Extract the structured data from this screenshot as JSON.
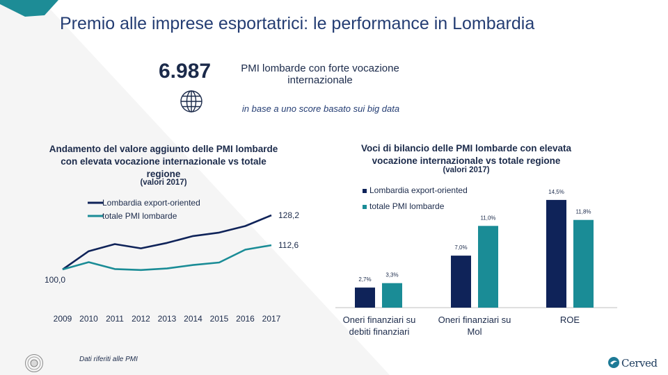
{
  "title": "Premio alle imprese esportatrici: le performance in Lombardia",
  "kpi": {
    "value": "6.987",
    "description": "PMI lombarde con forte vocazione internazionale",
    "note": "in base a uno score basato sui big data"
  },
  "colors": {
    "navy": "#0f2359",
    "teal": "#1a8c96",
    "title_blue": "#243d73",
    "axis": "#bfbfbf"
  },
  "chart_data": [
    {
      "type": "line",
      "title": "Andamento del valore aggiunto delle PMI lombarde con elevata vocazione internazionale vs totale regione",
      "subtitle": "(valori 2017)",
      "x": [
        "2009",
        "2010",
        "2011",
        "2012",
        "2013",
        "2014",
        "2015",
        "2016",
        "2017"
      ],
      "series": [
        {
          "name": "Lombardia export-oriented",
          "color": "#0f2359",
          "values": [
            100.0,
            109.5,
            113.2,
            111.0,
            113.8,
            117.4,
            119.2,
            122.6,
            128.2
          ],
          "end_label": "128,2"
        },
        {
          "name": "totale PMI lombarde",
          "color": "#1a8c96",
          "values": [
            100.0,
            103.8,
            100.2,
            99.7,
            100.5,
            102.3,
            103.6,
            110.3,
            112.6
          ],
          "end_label": "112,6"
        }
      ],
      "start_label": "100,0",
      "ylim": [
        97,
        131
      ],
      "legend": "top-left"
    },
    {
      "type": "bar",
      "title": "Voci di bilancio delle PMI lombarde con elevata vocazione internazionale vs totale regione",
      "subtitle": "(valori 2017)",
      "categories": [
        "Oneri finanziari su debiti finanziari",
        "Oneri finanziari su Mol",
        "ROE"
      ],
      "series": [
        {
          "name": "Lombardia export-oriented",
          "color": "#0f2359",
          "values": [
            2.7,
            7.0,
            14.5
          ],
          "labels": [
            "2,7%",
            "7,0%",
            "14,5%"
          ]
        },
        {
          "name": "totale PMI lombarde",
          "color": "#1a8c96",
          "values": [
            3.3,
            11.0,
            11.8
          ],
          "labels": [
            "3,3%",
            "11,0%",
            "11,8%"
          ]
        }
      ],
      "ylim": [
        0,
        15
      ],
      "legend": "top-left"
    }
  ],
  "footnote": "Dati riferiti alle PMI",
  "logo": {
    "name": "Cerved"
  }
}
